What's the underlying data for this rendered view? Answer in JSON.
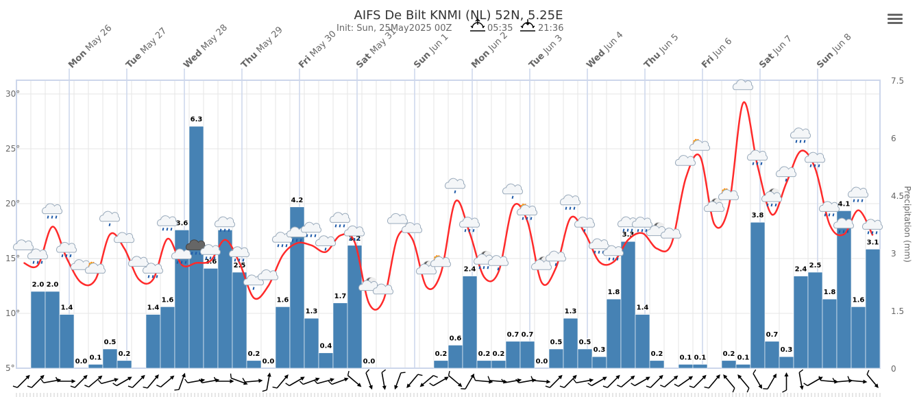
{
  "header": {
    "title": "AIFS De Bilt KNMI (NL) 52N, 5.25E",
    "init": "Init: Sun, 25May2025 00Z",
    "sunrise": "05:35",
    "sunset": "21:36"
  },
  "menu_icon": "hamburger-menu-icon",
  "colors": {
    "bars": "#4682b4",
    "temperature": "#ff2a2a",
    "grid": "#e6e6e6",
    "day_line": "#ccd6eb"
  },
  "chart_data": {
    "type": "bar+line",
    "title": "AIFS De Bilt KNMI (NL) 52N, 5.25E",
    "days": [
      {
        "day": "Mon",
        "date": "May 26"
      },
      {
        "day": "Tue",
        "date": "May 27"
      },
      {
        "day": "Wed",
        "date": "May 28"
      },
      {
        "day": "Thu",
        "date": "May 29"
      },
      {
        "day": "Fri",
        "date": "May 30"
      },
      {
        "day": "Sat",
        "date": "May 31"
      },
      {
        "day": "Sun",
        "date": "Jun 1"
      },
      {
        "day": "Mon",
        "date": "Jun 2"
      },
      {
        "day": "Tue",
        "date": "Jun 3"
      },
      {
        "day": "Wed",
        "date": "Jun 4"
      },
      {
        "day": "Thu",
        "date": "Jun 5"
      },
      {
        "day": "Fri",
        "date": "Jun 6"
      },
      {
        "day": "Sat",
        "date": "Jun 7"
      },
      {
        "day": "Sun",
        "date": "Jun 8"
      }
    ],
    "y_left": {
      "ticks": [
        "30°",
        "25°",
        "20°",
        "15°",
        "10°",
        "5°"
      ],
      "values": [
        30,
        25,
        20,
        15,
        10,
        5
      ],
      "range": [
        5,
        31.25
      ]
    },
    "y_right": {
      "label": "Precipitation (mm)",
      "ticks": [
        "7.5",
        "6",
        "4.5",
        "3",
        "1.5",
        "0"
      ],
      "values": [
        7.5,
        6,
        4.5,
        3,
        1.5,
        0
      ],
      "range": [
        0,
        7.5
      ]
    },
    "interval_hours": 6,
    "temperature": [
      14.6,
      14.4,
      17.9,
      15.0,
      12.8,
      13.1,
      17.2,
      15.9,
      13.1,
      13.1,
      16.8,
      14.4,
      14.6,
      14.8,
      16.7,
      14.6,
      11.4,
      12.5,
      15.3,
      16.4,
      16.2,
      15.6,
      17.1,
      16.5,
      10.9,
      11.2,
      17.0,
      16.8,
      12.4,
      13.7,
      20.2,
      17.3,
      13.3,
      13.8,
      19.7,
      18.4,
      12.8,
      14.2,
      18.7,
      17.3,
      14.7,
      14.7,
      16.7,
      17.3,
      15.9,
      16.3,
      22.3,
      24.3,
      18.1,
      19.8,
      29.2,
      23.4,
      19.0,
      21.9,
      24.8,
      23.2,
      18.1,
      17.2,
      19.4,
      17.1
    ],
    "precipitation": [
      null,
      2.0,
      2.0,
      1.4,
      0.0,
      0.1,
      0.5,
      0.2,
      null,
      1.4,
      1.6,
      3.6,
      6.3,
      2.6,
      3.6,
      2.5,
      0.2,
      0.0,
      1.6,
      4.2,
      1.3,
      0.4,
      1.7,
      3.2,
      0.0,
      null,
      null,
      null,
      null,
      0.2,
      0.6,
      2.4,
      0.2,
      0.2,
      0.7,
      0.7,
      0.0,
      0.5,
      1.3,
      0.5,
      0.3,
      1.8,
      3.3,
      1.4,
      0.2,
      null,
      0.1,
      0.1,
      null,
      0.2,
      0.1,
      3.8,
      0.7,
      0.3,
      2.4,
      2.5,
      1.8,
      4.1,
      1.6,
      3.1
    ],
    "weather_icons": [
      "cloud",
      "rain",
      "rain",
      "rain",
      "cloud",
      "sun-cloud",
      "light-rain",
      "cloud",
      "cloud",
      "rain",
      "rain",
      "rain",
      "thunder",
      "rain",
      "rain",
      "rain",
      "light-rain",
      "cloud",
      "rain",
      "rain",
      "rain",
      "light-rain",
      "rain",
      "rain",
      "moon-cloud",
      "cloud",
      "cloud",
      "cloud",
      "moon-cloud",
      "sun-cloud",
      "light-rain",
      "rain",
      "moon-rain",
      "light-rain",
      "light-rain",
      "sun-rain",
      "moon-cloud",
      "light-rain",
      "rain",
      "light-rain",
      "rain",
      "rain",
      "rain",
      "rain",
      "moon-cloud",
      "cloud",
      "cloud",
      "sun-cloud",
      "moon-cloud",
      "sun-cloud",
      "cloud",
      "rain",
      "moon-rain",
      "light-rain",
      "rain",
      "rain",
      "rain",
      "rain",
      "rain",
      "rain"
    ],
    "wind_direction_to": [
      45,
      45,
      80,
      90,
      45,
      50,
      75,
      60,
      45,
      40,
      50,
      20,
      80,
      80,
      90,
      110,
      85,
      10,
      40,
      60,
      70,
      75,
      70,
      130,
      160,
      170,
      200,
      220,
      230,
      60,
      130,
      30,
      95,
      95,
      80,
      80,
      95,
      45,
      45,
      80,
      60,
      45,
      50,
      60,
      45,
      50,
      55,
      45,
      40,
      320,
      320,
      150,
      30,
      0,
      170,
      60,
      95,
      85,
      95,
      140
    ]
  }
}
